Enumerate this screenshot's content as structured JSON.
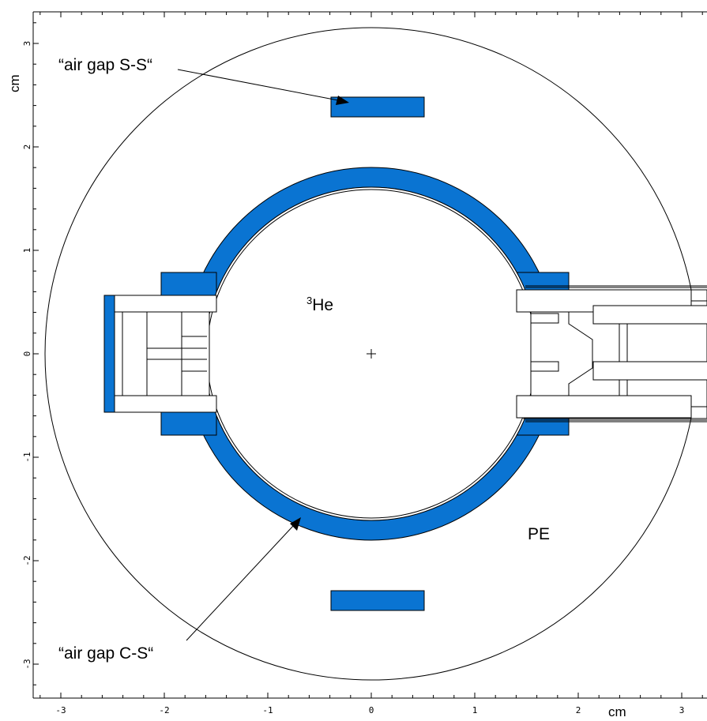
{
  "colors": {
    "absorber": "#0a74d2",
    "line": "#000000",
    "background": "#ffffff"
  },
  "labels": {
    "air_gap_ss": "“air gap S-S“",
    "air_gap_cs": "“air gap C-S“",
    "he3_sup": "3",
    "he3_base": "He",
    "pe": "PE"
  },
  "axes": {
    "x_unit": "cm",
    "y_unit": "cm",
    "x_ticks": [
      "-3",
      "-2",
      "-1",
      "0",
      "1",
      "2",
      "3"
    ],
    "y_ticks": [
      "3",
      "2",
      "1",
      "0",
      "-1",
      "-2",
      "-3"
    ]
  }
}
